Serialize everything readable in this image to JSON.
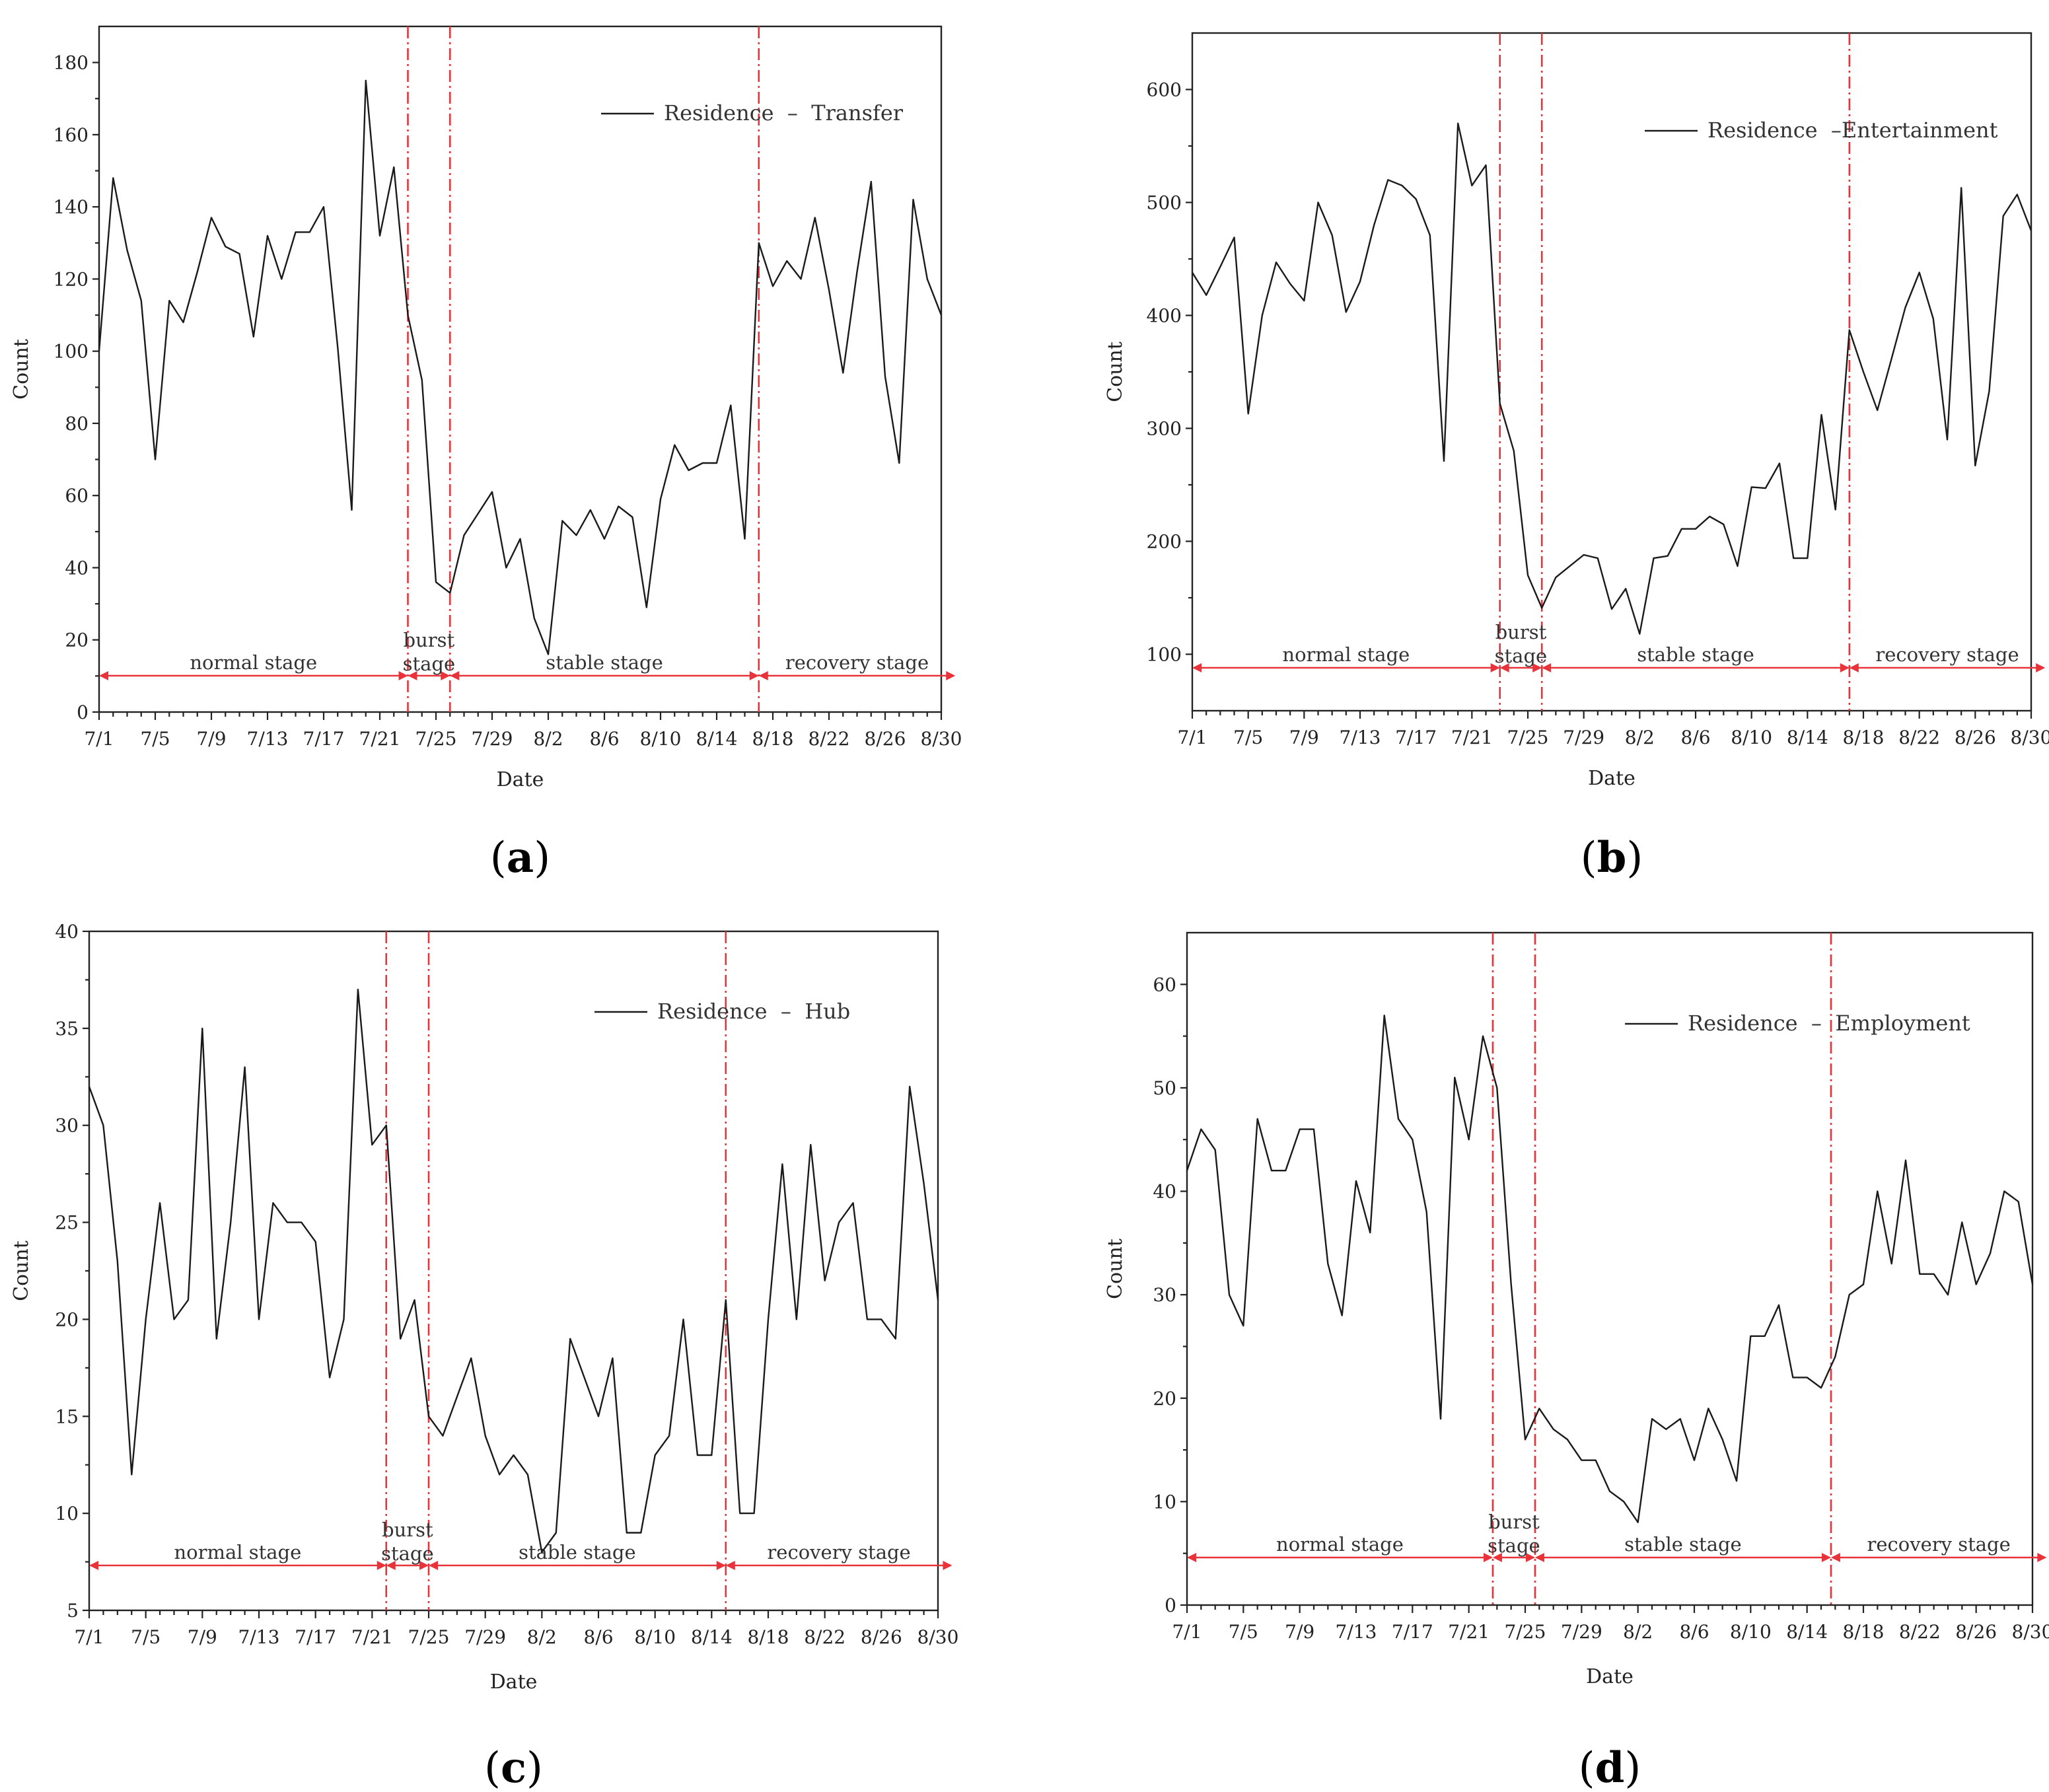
{
  "chart_data": [
    {
      "type": "line",
      "panel_label": "(a)",
      "label_letter": "a",
      "xlabel": "Date",
      "ylabel": "Count",
      "ylim": [
        0,
        190
      ],
      "yticks": [
        0,
        20,
        40,
        60,
        80,
        100,
        120,
        140,
        160,
        180
      ],
      "xtick_labels": [
        "7/1",
        "7/5",
        "7/9",
        "7/13",
        "7/17",
        "7/21",
        "7/25",
        "7/29",
        "8/2",
        "8/6",
        "8/10",
        "8/14",
        "8/18",
        "8/22",
        "8/26",
        "8/30"
      ],
      "legend": "Residence  –  Transfer",
      "dividers_day": [
        22,
        25,
        47
      ],
      "stages": [
        {
          "label": "normal stage",
          "from": 0,
          "to": 22
        },
        {
          "label": "burst stage",
          "lines": [
            "burst",
            "stage"
          ],
          "from": 22,
          "to": 25
        },
        {
          "label": "stable stage",
          "from": 25,
          "to": 47
        },
        {
          "label": "recovery stage",
          "from": 47,
          "to": 61
        }
      ],
      "series": [
        {
          "name": "Residence - Transfer",
          "values": [
            100,
            148,
            128,
            114,
            70,
            114,
            108,
            122,
            137,
            129,
            127,
            104,
            132,
            120,
            133,
            133,
            140,
            101,
            56,
            175,
            132,
            151,
            110,
            92,
            36,
            33,
            49,
            55,
            61,
            40,
            48,
            26,
            16,
            53,
            49,
            56,
            48,
            57,
            54,
            29,
            59,
            74,
            67,
            69,
            69,
            85,
            48,
            130,
            118,
            125,
            120,
            137,
            117,
            94,
            122,
            147,
            93,
            69,
            142,
            120,
            110
          ]
        }
      ]
    },
    {
      "type": "line",
      "panel_label": "(b)",
      "label_letter": "b",
      "xlabel": "Date",
      "ylabel": "Count",
      "ylim": [
        50,
        650
      ],
      "yticks": [
        100,
        200,
        300,
        400,
        500,
        600
      ],
      "xtick_labels": [
        "7/1",
        "7/5",
        "7/9",
        "7/13",
        "7/17",
        "7/21",
        "7/25",
        "7/29",
        "8/2",
        "8/6",
        "8/10",
        "8/14",
        "8/18",
        "8/22",
        "8/26",
        "8/30"
      ],
      "legend": "Residence  –Entertainment",
      "dividers_day": [
        22,
        25,
        47
      ],
      "stages": [
        {
          "label": "normal stage",
          "from": 0,
          "to": 22
        },
        {
          "label": "burst stage",
          "lines": [
            "burst",
            "stage"
          ],
          "from": 22,
          "to": 25
        },
        {
          "label": "stable stage",
          "from": 25,
          "to": 47
        },
        {
          "label": "recovery stage",
          "from": 47,
          "to": 61
        }
      ],
      "series": [
        {
          "name": "Residence - Entertainment",
          "values": [
            438,
            418,
            443,
            469,
            313,
            400,
            447,
            428,
            413,
            500,
            471,
            403,
            430,
            480,
            520,
            515,
            503,
            471,
            271,
            570,
            515,
            533,
            322,
            280,
            170,
            141,
            168,
            178,
            188,
            185,
            140,
            158,
            118,
            185,
            187,
            211,
            211,
            222,
            215,
            178,
            248,
            247,
            269,
            185,
            185,
            312,
            228,
            387,
            350,
            316,
            361,
            407,
            438,
            397,
            290,
            513,
            267,
            333,
            488,
            507,
            475
          ]
        }
      ]
    },
    {
      "type": "line",
      "panel_label": "(c)",
      "label_letter": "c",
      "xlabel": "Date",
      "ylabel": "Count",
      "ylim": [
        5,
        40
      ],
      "yticks": [
        5,
        10,
        15,
        20,
        25,
        30,
        35,
        40
      ],
      "xtick_labels": [
        "7/1",
        "7/5",
        "7/9",
        "7/13",
        "7/17",
        "7/21",
        "7/25",
        "7/29",
        "8/2",
        "8/6",
        "8/10",
        "8/14",
        "8/18",
        "8/22",
        "8/26",
        "8/30"
      ],
      "legend": "Residence  –  Hub",
      "dividers_day": [
        21,
        24,
        45
      ],
      "stages": [
        {
          "label": "normal stage",
          "from": 0,
          "to": 21
        },
        {
          "label": "burst stage",
          "lines": [
            "burst",
            "stage"
          ],
          "from": 21,
          "to": 24
        },
        {
          "label": "stable stage",
          "from": 24,
          "to": 45
        },
        {
          "label": "recovery stage",
          "from": 45,
          "to": 61
        }
      ],
      "series": [
        {
          "name": "Residence - Hub",
          "values": [
            32,
            30,
            23,
            12,
            20,
            26,
            20,
            21,
            35,
            19,
            25,
            33,
            20,
            26,
            25,
            25,
            24,
            17,
            20,
            37,
            29,
            30,
            19,
            21,
            15,
            14,
            16,
            18,
            14,
            12,
            13,
            12,
            8,
            9,
            19,
            17,
            15,
            18,
            9,
            9,
            13,
            14,
            20,
            13,
            13,
            21,
            10,
            10,
            20,
            28,
            20,
            29,
            22,
            25,
            26,
            20,
            20,
            19,
            32,
            27,
            21
          ]
        }
      ]
    },
    {
      "type": "line",
      "panel_label": "(d)",
      "label_letter": "d",
      "xlabel": "Date",
      "ylabel": "Count",
      "ylim": [
        0,
        65
      ],
      "yticks": [
        0,
        10,
        20,
        30,
        40,
        50,
        60
      ],
      "xtick_labels": [
        "7/1",
        "7/5",
        "7/9",
        "7/13",
        "7/17",
        "7/21",
        "7/25",
        "7/29",
        "8/2",
        "8/6",
        "8/10",
        "8/14",
        "8/18",
        "8/22",
        "8/26",
        "8/30"
      ],
      "legend": "Residence  –  Employment",
      "dividers_day": [
        21.7,
        24.7,
        45.7
      ],
      "stages": [
        {
          "label": "normal stage",
          "from": 0,
          "to": 21.7
        },
        {
          "label": "burst stage",
          "lines": [
            "burst",
            "stage"
          ],
          "from": 21.7,
          "to": 24.7
        },
        {
          "label": "stable stage",
          "from": 24.7,
          "to": 45.7
        },
        {
          "label": "recovery stage",
          "from": 45.7,
          "to": 61
        }
      ],
      "series": [
        {
          "name": "Residence - Employment",
          "values": [
            42,
            46,
            44,
            30,
            27,
            47,
            42,
            42,
            46,
            46,
            33,
            28,
            41,
            36,
            57,
            47,
            45,
            38,
            18,
            51,
            45,
            55,
            50,
            31,
            16,
            19,
            17,
            16,
            14,
            14,
            11,
            10,
            8,
            18,
            17,
            18,
            14,
            19,
            16,
            12,
            26,
            26,
            29,
            22,
            22,
            21,
            24,
            30,
            31,
            40,
            33,
            43,
            32,
            32,
            30,
            37,
            31,
            34,
            40,
            39,
            31
          ]
        }
      ]
    }
  ]
}
